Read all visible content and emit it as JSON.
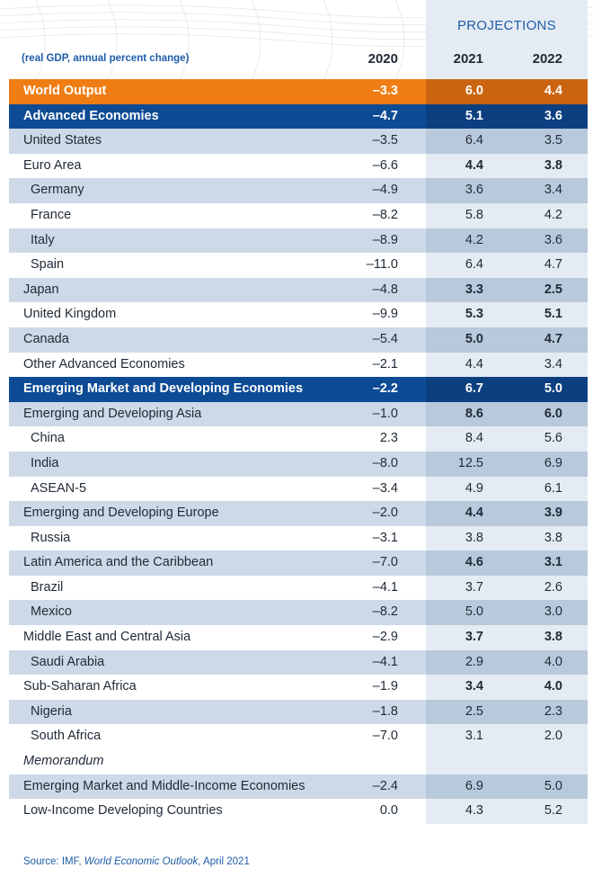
{
  "header": {
    "projections_label": "PROJECTIONS",
    "note": "(real GDP, annual percent change)",
    "years": [
      "2020",
      "2021",
      "2022"
    ]
  },
  "rows": [
    {
      "label": "World Output",
      "v": [
        "–3.3",
        "6.0",
        "4.4"
      ],
      "style": "world"
    },
    {
      "label": "Advanced Economies",
      "v": [
        "–4.7",
        "5.1",
        "3.6"
      ],
      "style": "blue"
    },
    {
      "label": "United States",
      "v": [
        "–3.5",
        "6.4",
        "3.5"
      ],
      "style": "shaded"
    },
    {
      "label": "Euro Area",
      "v": [
        "–6.6",
        "4.4",
        "3.8"
      ],
      "style": "plain boldproj"
    },
    {
      "label": "Germany",
      "v": [
        "–4.9",
        "3.6",
        "3.4"
      ],
      "style": "shaded indent"
    },
    {
      "label": "France",
      "v": [
        "–8.2",
        "5.8",
        "4.2"
      ],
      "style": "plain indent"
    },
    {
      "label": "Italy",
      "v": [
        "–8.9",
        "4.2",
        "3.6"
      ],
      "style": "shaded indent"
    },
    {
      "label": "Spain",
      "v": [
        "–11.0",
        "6.4",
        "4.7"
      ],
      "style": "plain indent"
    },
    {
      "label": "Japan",
      "v": [
        "–4.8",
        "3.3",
        "2.5"
      ],
      "style": "shaded boldproj"
    },
    {
      "label": "United Kingdom",
      "v": [
        "–9.9",
        "5.3",
        "5.1"
      ],
      "style": "plain boldproj"
    },
    {
      "label": "Canada",
      "v": [
        "–5.4",
        "5.0",
        "4.7"
      ],
      "style": "shaded boldproj"
    },
    {
      "label": "Other Advanced Economies",
      "v": [
        "–2.1",
        "4.4",
        "3.4"
      ],
      "style": "plain"
    },
    {
      "label": "Emerging Market and Developing Economies",
      "v": [
        "–2.2",
        "6.7",
        "5.0"
      ],
      "style": "blue"
    },
    {
      "label": "Emerging and Developing Asia",
      "v": [
        "–1.0",
        "8.6",
        "6.0"
      ],
      "style": "shaded boldproj"
    },
    {
      "label": "China",
      "v": [
        "2.3",
        "8.4",
        "5.6"
      ],
      "style": "plain indent"
    },
    {
      "label": "India",
      "v": [
        "–8.0",
        "12.5",
        "6.9"
      ],
      "style": "shaded indent"
    },
    {
      "label": "ASEAN-5",
      "v": [
        "–3.4",
        "4.9",
        "6.1"
      ],
      "style": "plain indent"
    },
    {
      "label": "Emerging and Developing Europe",
      "v": [
        "–2.0",
        "4.4",
        "3.9"
      ],
      "style": "shaded boldproj"
    },
    {
      "label": "Russia",
      "v": [
        "–3.1",
        "3.8",
        "3.8"
      ],
      "style": "plain indent"
    },
    {
      "label": "Latin America and the Caribbean",
      "v": [
        "–7.0",
        "4.6",
        "3.1"
      ],
      "style": "shaded boldproj"
    },
    {
      "label": "Brazil",
      "v": [
        "–4.1",
        "3.7",
        "2.6"
      ],
      "style": "plain indent"
    },
    {
      "label": "Mexico",
      "v": [
        "–8.2",
        "5.0",
        "3.0"
      ],
      "style": "shaded indent"
    },
    {
      "label": "Middle East and Central Asia",
      "v": [
        "–2.9",
        "3.7",
        "3.8"
      ],
      "style": "plain boldproj"
    },
    {
      "label": "Saudi Arabia",
      "v": [
        "–4.1",
        "2.9",
        "4.0"
      ],
      "style": "shaded indent"
    },
    {
      "label": "Sub-Saharan Africa",
      "v": [
        "–1.9",
        "3.4",
        "4.0"
      ],
      "style": "plain boldproj"
    },
    {
      "label": "Nigeria",
      "v": [
        "–1.8",
        "2.5",
        "2.3"
      ],
      "style": "shaded indent"
    },
    {
      "label": "South Africa",
      "v": [
        "–7.0",
        "3.1",
        "2.0"
      ],
      "style": "plain indent"
    },
    {
      "label": "Memorandum",
      "v": [
        "",
        "",
        ""
      ],
      "style": "plain memo"
    },
    {
      "label": "Emerging Market and Middle-Income Economies",
      "v": [
        "–2.4",
        "6.9",
        "5.0"
      ],
      "style": "shaded"
    },
    {
      "label": "Low-Income Developing Countries",
      "v": [
        "0.0",
        "4.3",
        "5.2"
      ],
      "style": "plain"
    }
  ],
  "source": {
    "prefix": "Source: IMF, ",
    "publication": "World Economic Outlook",
    "suffix": ", April 2021"
  },
  "colors": {
    "world_row": "#ef7d14",
    "blue_row": "#0e4b95",
    "shaded_row": "#cdd9e7",
    "accent_text": "#1e5ca8"
  }
}
